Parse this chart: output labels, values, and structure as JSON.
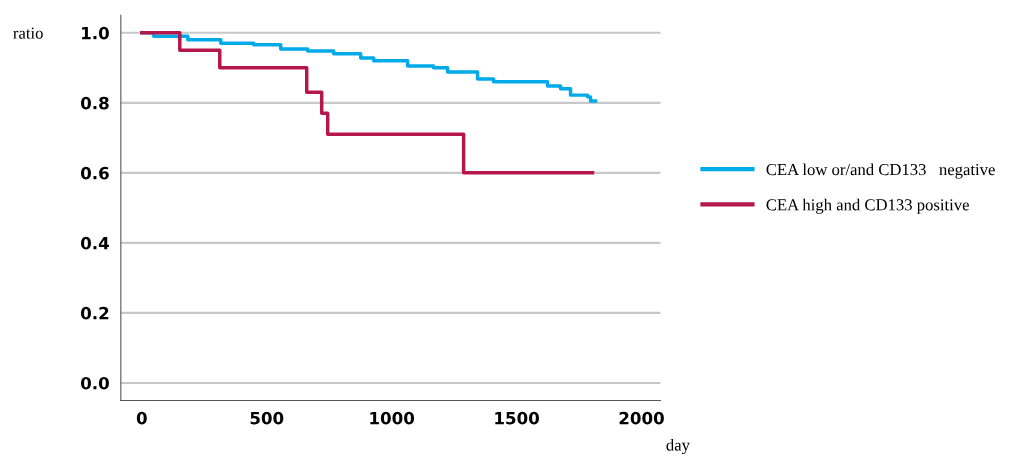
{
  "chart_data": {
    "type": "step",
    "xlabel": "day",
    "ylabel": "ratio",
    "xlim": [
      -84,
      2076
    ],
    "ylim": [
      -0.05,
      1.05
    ],
    "xticks": [
      0,
      500,
      1000,
      1500,
      2000
    ],
    "yticks": [
      {
        "value": 0,
        "label": "0.0"
      },
      {
        "value": 0.2,
        "label": "0.2"
      },
      {
        "value": 0.4,
        "label": "0.4"
      },
      {
        "value": 0.6,
        "label": "0.6"
      },
      {
        "value": 0.8,
        "label": "0.8"
      },
      {
        "value": 1.0,
        "label": "1.0"
      }
    ],
    "grid": "y",
    "legend": "right",
    "line_style": "solid",
    "series": [
      {
        "name": "CEA low or/and CD133   negative",
        "color": "#00aae8",
        "x": [
          0,
          48,
          184,
          316,
          448,
          556,
          664,
          768,
          876,
          928,
          1036,
          1064,
          1168,
          1224,
          1316,
          1344,
          1408,
          1596,
          1624,
          1676,
          1716,
          1784,
          1796,
          1816
        ],
        "values": [
          1.0,
          0.99,
          0.98,
          0.97,
          0.966,
          0.954,
          0.948,
          0.94,
          0.928,
          0.92,
          0.92,
          0.905,
          0.9,
          0.888,
          0.888,
          0.868,
          0.86,
          0.86,
          0.848,
          0.84,
          0.822,
          0.817,
          0.805,
          0.805
        ]
      },
      {
        "name": "CEA high and CD133 positive",
        "color": "#b5164b",
        "x": [
          0,
          152,
          312,
          660,
          720,
          744,
          1288,
          1804
        ],
        "values": [
          1.0,
          0.95,
          0.9,
          0.83,
          0.77,
          0.71,
          0.6,
          0.6
        ]
      }
    ]
  }
}
